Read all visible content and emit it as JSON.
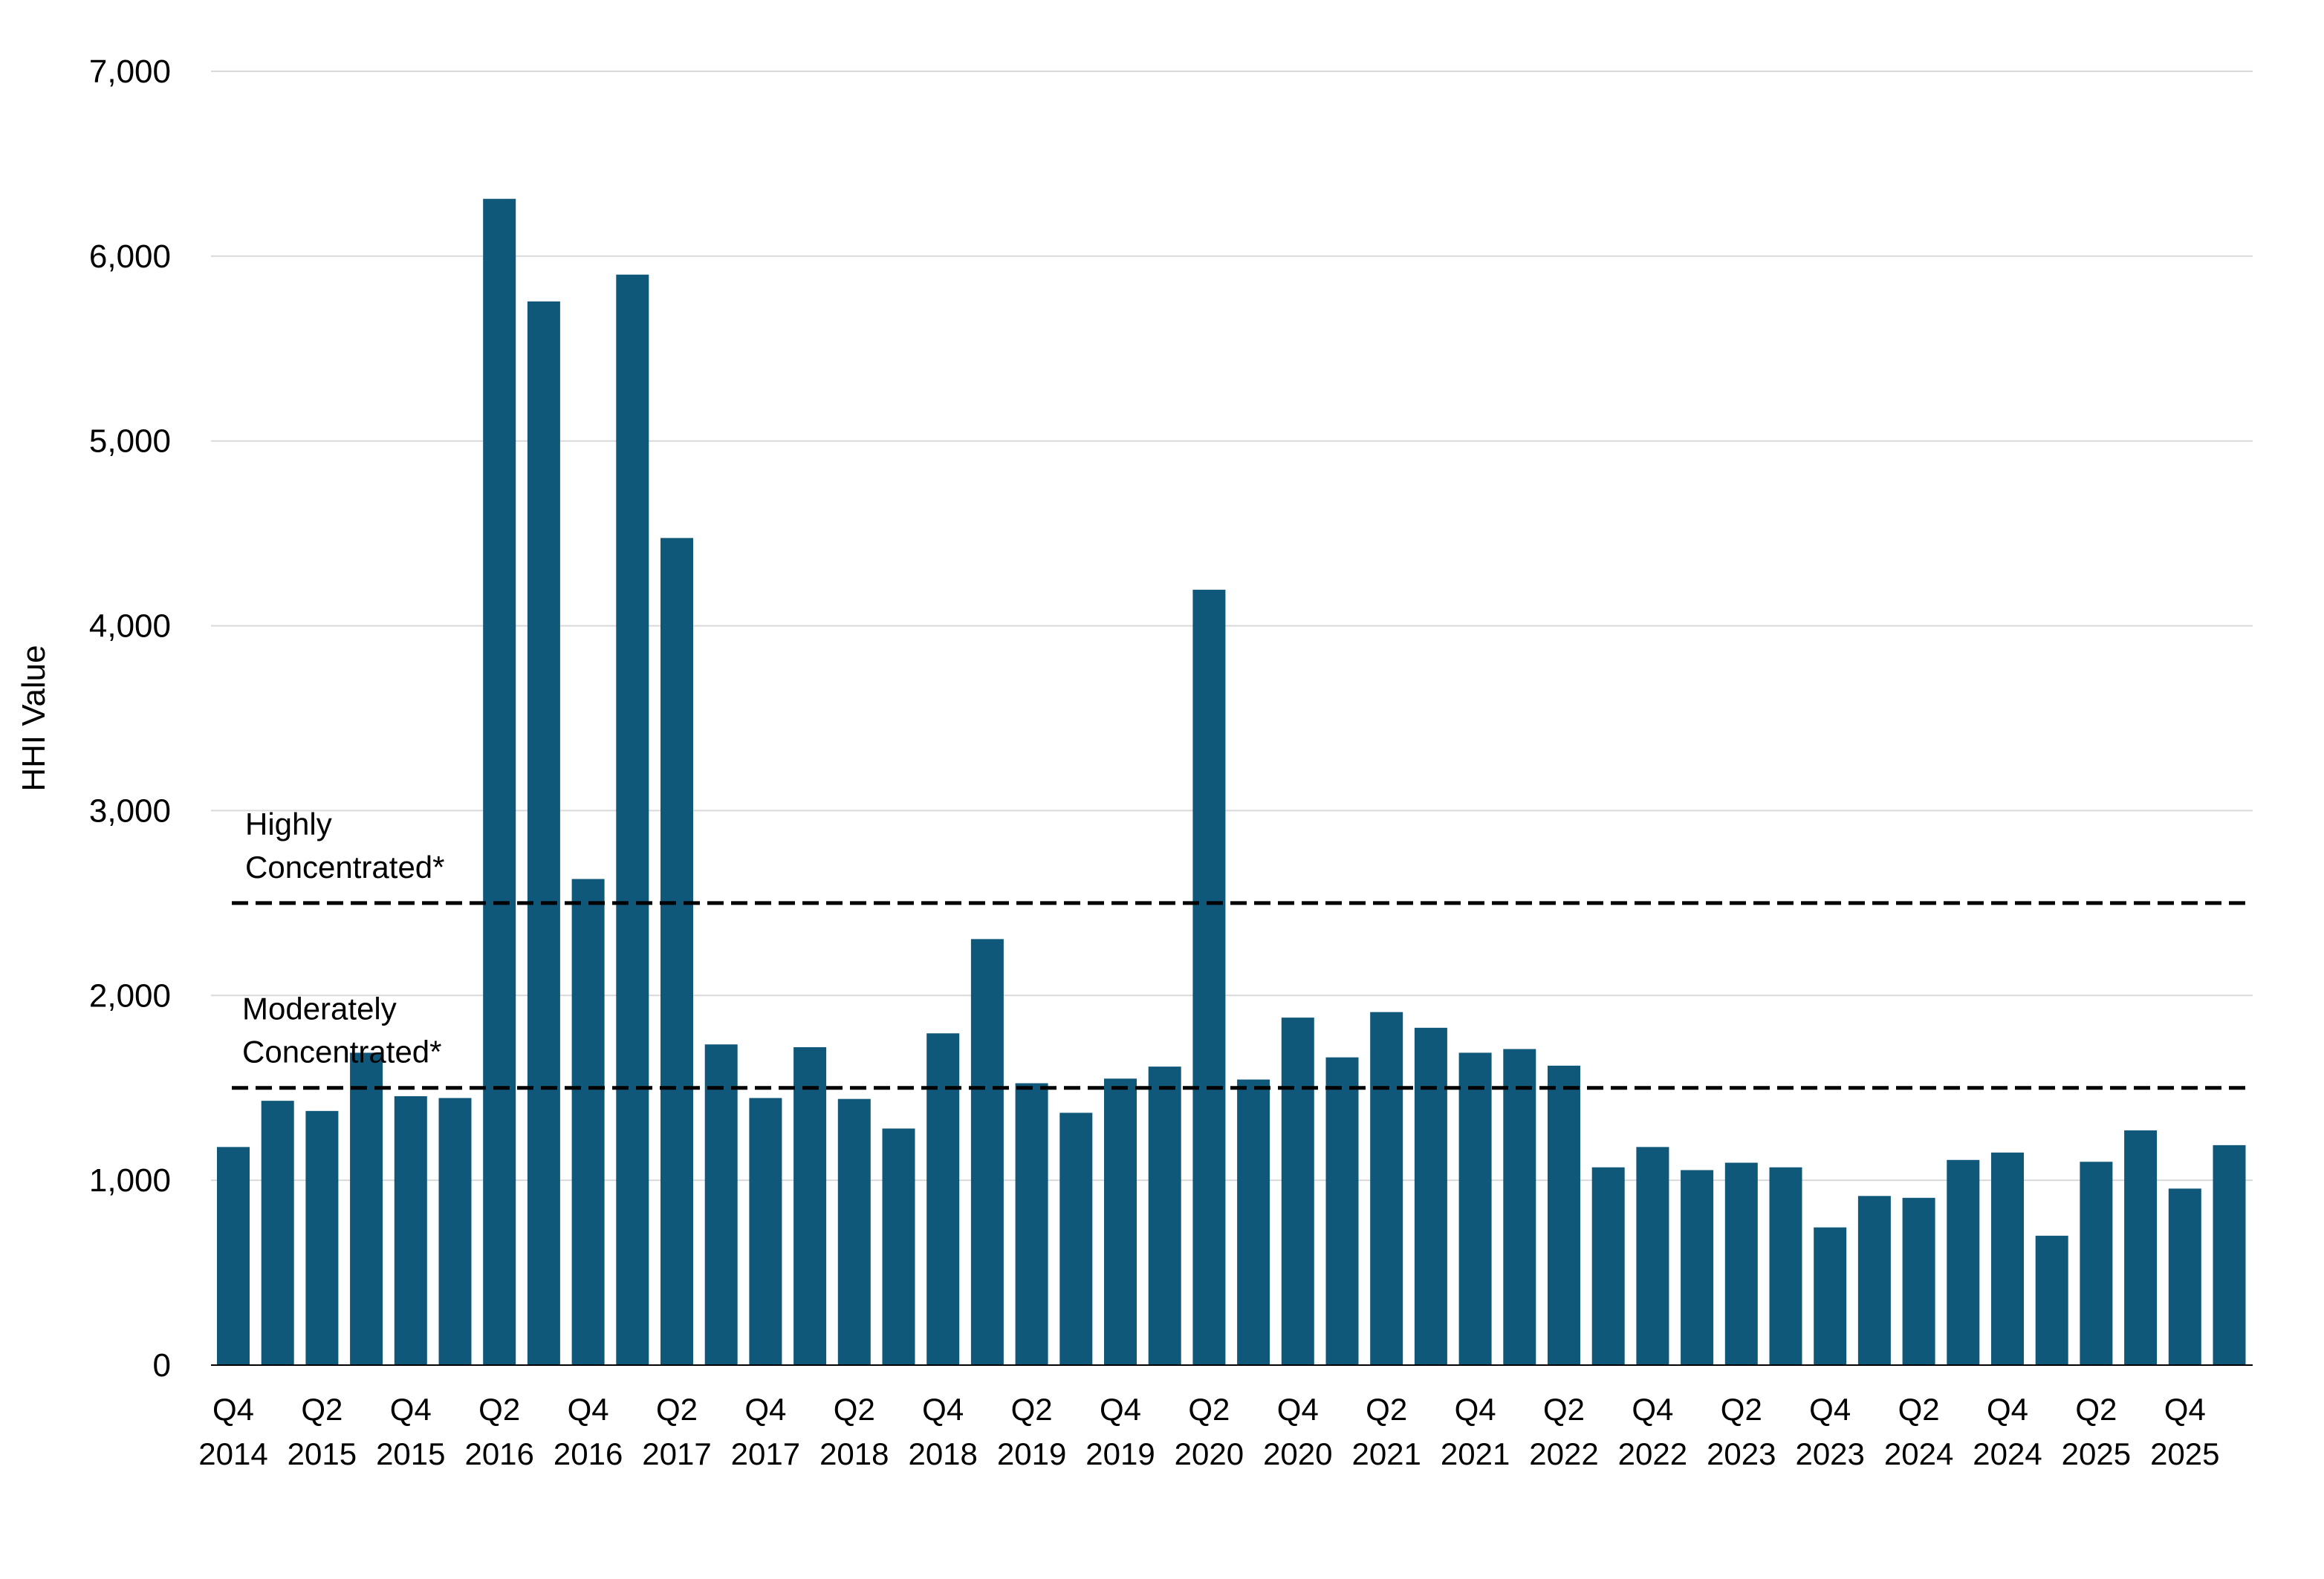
{
  "chart_data": {
    "type": "bar",
    "title": "",
    "xlabel": "",
    "ylabel": "HHI  Value",
    "ylim": [
      0,
      7000
    ],
    "yticks": [
      0,
      1000,
      2000,
      3000,
      4000,
      5000,
      6000,
      7000
    ],
    "ytick_labels": [
      "0",
      "1,000",
      "2,000",
      "3,000",
      "4,000",
      "5,000",
      "6,000",
      "7,000"
    ],
    "grid": true,
    "bar_color": "#10587a",
    "categories": [
      "Q4 2014",
      "Q1 2015",
      "Q2 2015",
      "Q3 2015",
      "Q4 2015",
      "Q1 2016",
      "Q2 2016",
      "Q3 2016",
      "Q4 2016",
      "Q1 2017",
      "Q2 2017",
      "Q3 2017",
      "Q4 2017",
      "Q1 2018",
      "Q2 2018",
      "Q3 2018",
      "Q4 2018",
      "Q1 2019",
      "Q2 2019",
      "Q3 2019",
      "Q4 2019",
      "Q1 2020",
      "Q2 2020",
      "Q3 2020",
      "Q4 2020",
      "Q1 2021",
      "Q2 2021",
      "Q3 2021",
      "Q4 2021",
      "Q1 2022",
      "Q2 2022",
      "Q3 2022",
      "Q4 2022",
      "Q1 2023",
      "Q2 2023",
      "Q3 2023",
      "Q4 2023",
      "Q1 2024",
      "Q2 2024",
      "Q3 2024",
      "Q4 2024",
      "Q1 2025",
      "Q2 2025",
      "Q3 2025",
      "Q4 2025",
      "Q1 2026"
    ],
    "values": [
      1180,
      1430,
      1375,
      1690,
      1455,
      1445,
      6310,
      5755,
      2630,
      5900,
      4475,
      1735,
      1445,
      1720,
      1440,
      1280,
      1795,
      2305,
      1525,
      1365,
      1550,
      1615,
      4195,
      1545,
      1880,
      1665,
      1910,
      1825,
      1690,
      1710,
      1620,
      1070,
      1180,
      1055,
      1095,
      1070,
      745,
      915,
      905,
      1110,
      1150,
      700,
      1100,
      1270,
      955,
      1190
    ],
    "tick_labels": [
      {
        "quarter": "Q4",
        "year": "2014"
      },
      {
        "quarter": "Q2",
        "year": "2015"
      },
      {
        "quarter": "Q4",
        "year": "2015"
      },
      {
        "quarter": "Q2",
        "year": "2016"
      },
      {
        "quarter": "Q4",
        "year": "2016"
      },
      {
        "quarter": "Q2",
        "year": "2017"
      },
      {
        "quarter": "Q4",
        "year": "2017"
      },
      {
        "quarter": "Q2",
        "year": "2018"
      },
      {
        "quarter": "Q4",
        "year": "2018"
      },
      {
        "quarter": "Q2",
        "year": "2019"
      },
      {
        "quarter": "Q4",
        "year": "2019"
      },
      {
        "quarter": "Q2",
        "year": "2020"
      },
      {
        "quarter": "Q4",
        "year": "2020"
      },
      {
        "quarter": "Q2",
        "year": "2021"
      },
      {
        "quarter": "Q4",
        "year": "2021"
      },
      {
        "quarter": "Q2",
        "year": "2022"
      },
      {
        "quarter": "Q4",
        "year": "2022"
      },
      {
        "quarter": "Q2",
        "year": "2023"
      },
      {
        "quarter": "Q4",
        "year": "2023"
      },
      {
        "quarter": "Q2",
        "year": "2024"
      },
      {
        "quarter": "Q4",
        "year": "2024"
      },
      {
        "quarter": "Q2",
        "year": "2025"
      },
      {
        "quarter": "Q4",
        "year": "2025"
      }
    ],
    "reference_lines": [
      {
        "value": 2500,
        "style": "dashed",
        "color": "#000000",
        "label_line1": "Highly",
        "label_line2": "Concentrated*"
      },
      {
        "value": 1500,
        "style": "dashed",
        "color": "#000000",
        "label_line1": "Moderately",
        "label_line2": "Concentrated*"
      }
    ]
  }
}
